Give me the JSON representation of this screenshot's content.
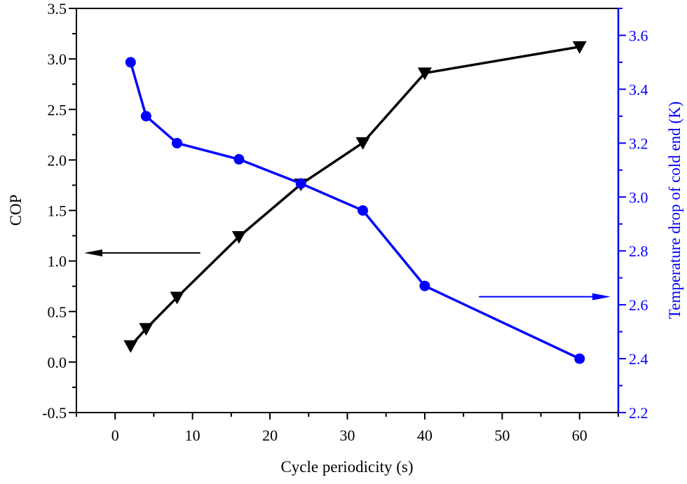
{
  "chart_data": {
    "type": "line",
    "title": "",
    "xlabel": "Cycle periodicity (s)",
    "ylabel": "COP",
    "ylabel_right": "Temperature drop of cold end (K)",
    "xlim": [
      -5,
      65
    ],
    "ylim": [
      -0.5,
      3.5
    ],
    "ylim_right": [
      2.2,
      3.7
    ],
    "x_ticks": [
      0,
      10,
      20,
      30,
      40,
      50,
      60
    ],
    "x_tick_labels": [
      "0",
      "10",
      "20",
      "30",
      "40",
      "50",
      "60"
    ],
    "y_ticks": [
      -0.5,
      0,
      0.5,
      1,
      1.5,
      2,
      2.5,
      3,
      3.5
    ],
    "y_tick_labels": [
      "-0.5",
      "0.0",
      "0.5",
      "1.0",
      "1.5",
      "2.0",
      "2.5",
      "3.0",
      "3.5"
    ],
    "y_right_ticks": [
      2.2,
      2.4,
      2.6,
      2.8,
      3.0,
      3.2,
      3.4,
      3.6
    ],
    "y_right_tick_labels": [
      "2.2",
      "2.4",
      "2.6",
      "2.8",
      "3.0",
      "3.2",
      "3.4",
      "3.6"
    ],
    "grid": false,
    "x": [
      2,
      4,
      8,
      16,
      24,
      32,
      40,
      60
    ],
    "series": [
      {
        "name": "COP",
        "axis": "left",
        "marker": "triangle-down",
        "color": "#000000",
        "values": [
          0.16,
          0.33,
          0.64,
          1.24,
          1.76,
          2.17,
          2.86,
          3.12
        ]
      },
      {
        "name": "Temperature drop of cold end",
        "axis": "right",
        "marker": "circle",
        "color": "#0000ff",
        "values": [
          3.5,
          3.3,
          3.2,
          3.14,
          3.05,
          2.95,
          2.67,
          2.4
        ]
      }
    ],
    "annotations": [
      {
        "type": "arrow",
        "direction": "left",
        "points_to": "left axis",
        "color": "#000000",
        "at_y": 1.08,
        "x_from": 11,
        "x_to": -4
      },
      {
        "type": "arrow",
        "direction": "right",
        "points_to": "right axis",
        "color": "#0000ff",
        "at_y_right": 2.63,
        "x_from": 47,
        "x_to": 64
      }
    ]
  }
}
